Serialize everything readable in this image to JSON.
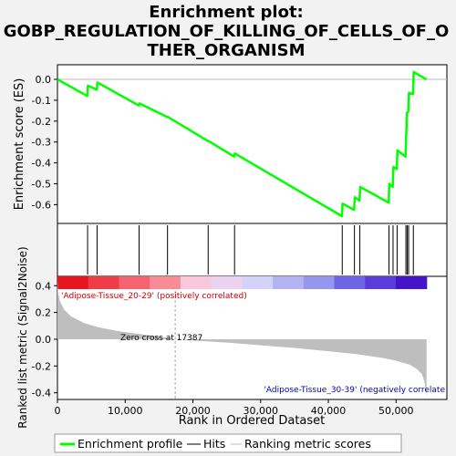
{
  "chart_data": {
    "type": "line",
    "title_lines": [
      "Enrichment plot:",
      "GOBP_REGULATION_OF_KILLING_OF_CELLS_OF_O",
      "THER_ORGANISM"
    ],
    "es_panel": {
      "ylabel": "Enrichment score (ES)",
      "ylim": [
        -0.69,
        0.07
      ],
      "yticks": [
        0.0,
        -0.1,
        -0.2,
        -0.3,
        -0.4,
        -0.5,
        -0.6
      ],
      "ytick_labels": [
        "0.0",
        "-0.1",
        "-0.2",
        "-0.3",
        "-0.4",
        "-0.5",
        "-0.6"
      ],
      "series_name": "Enrichment profile",
      "line_color": "#00ff00",
      "points": [
        [
          0,
          0.0
        ],
        [
          4400,
          -0.08
        ],
        [
          4500,
          -0.03
        ],
        [
          5800,
          -0.05
        ],
        [
          5900,
          -0.015
        ],
        [
          12000,
          -0.125
        ],
        [
          12100,
          -0.115
        ],
        [
          16200,
          -0.18
        ],
        [
          16300,
          -0.18
        ],
        [
          22200,
          -0.295
        ],
        [
          22300,
          -0.295
        ],
        [
          26100,
          -0.37
        ],
        [
          26200,
          -0.355
        ],
        [
          42000,
          -0.655
        ],
        [
          42100,
          -0.595
        ],
        [
          43800,
          -0.625
        ],
        [
          43900,
          -0.565
        ],
        [
          44600,
          -0.58
        ],
        [
          44700,
          -0.515
        ],
        [
          48900,
          -0.59
        ],
        [
          49000,
          -0.5
        ],
        [
          49500,
          -0.515
        ],
        [
          49600,
          -0.42
        ],
        [
          50100,
          -0.43
        ],
        [
          50200,
          -0.34
        ],
        [
          51400,
          -0.37
        ],
        [
          51500,
          -0.265
        ],
        [
          51600,
          -0.16
        ],
        [
          51800,
          -0.155
        ],
        [
          51900,
          -0.065
        ],
        [
          52500,
          -0.07
        ],
        [
          52600,
          0.035
        ],
        [
          54500,
          0.0
        ]
      ]
    },
    "hits": {
      "name": "Hits",
      "positions": [
        4450,
        5850,
        12050,
        16250,
        22250,
        26150,
        42050,
        43850,
        44650,
        48950,
        49550,
        50150,
        51450,
        51650,
        51850,
        52550
      ]
    },
    "ranked_panel": {
      "ylabel": "Ranked list metric (Signal2Noise)",
      "ylim": [
        -0.45,
        0.47
      ],
      "yticks": [
        0.4,
        0.2,
        0.0,
        -0.2,
        -0.4
      ],
      "ytick_labels": [
        "0.4",
        "0.2",
        "0.0",
        "-0.2",
        "-0.4"
      ],
      "series_name": "Ranking metric scores",
      "fill_color": "#bebebe",
      "curve": [
        [
          0,
          0.44
        ],
        [
          100,
          0.35
        ],
        [
          400,
          0.28
        ],
        [
          1000,
          0.22
        ],
        [
          2000,
          0.17
        ],
        [
          4000,
          0.12
        ],
        [
          6000,
          0.09
        ],
        [
          9000,
          0.06
        ],
        [
          12000,
          0.04
        ],
        [
          15000,
          0.02
        ],
        [
          17387,
          0.0
        ],
        [
          20000,
          -0.01
        ],
        [
          25000,
          -0.025
        ],
        [
          30000,
          -0.045
        ],
        [
          35000,
          -0.065
        ],
        [
          40000,
          -0.09
        ],
        [
          44000,
          -0.11
        ],
        [
          48000,
          -0.14
        ],
        [
          50000,
          -0.16
        ],
        [
          52000,
          -0.19
        ],
        [
          53000,
          -0.22
        ],
        [
          53800,
          -0.26
        ],
        [
          54200,
          -0.32
        ],
        [
          54500,
          -0.43
        ]
      ],
      "zero_cross": 17387,
      "zero_cross_label": "Zero cross at 17387",
      "pos_label": "'Adipose-Tissue_20-29' (positively correlated)",
      "neg_label": "'Adipose-Tissue_30-39' (negatively correlate",
      "pos_label_color": "#cc0000",
      "neg_label_color": "#0000cc"
    },
    "heatbar_colors": [
      "#e8141e",
      "#f03c46",
      "#f5646e",
      "#f88c96",
      "#fac8dc",
      "#ebd2f0",
      "#d2d2fa",
      "#b4b4f5",
      "#9696f0",
      "#6e64e6",
      "#5a3cdc",
      "#4614c8"
    ],
    "xaxis": {
      "xlabel": "Rank in Ordered Dataset",
      "xlim": [
        0,
        57500
      ],
      "xmax_data": 54500,
      "xticks": [
        0,
        10000,
        20000,
        30000,
        40000,
        50000
      ],
      "xtick_labels": [
        "0",
        "10,000",
        "20,000",
        "30,000",
        "40,000",
        "50,000"
      ]
    },
    "legend": {
      "items": [
        "Enrichment profile",
        "Hits",
        "Ranking metric scores"
      ],
      "colors": [
        "#00ff00",
        "#000000",
        "#bebebe"
      ]
    }
  }
}
